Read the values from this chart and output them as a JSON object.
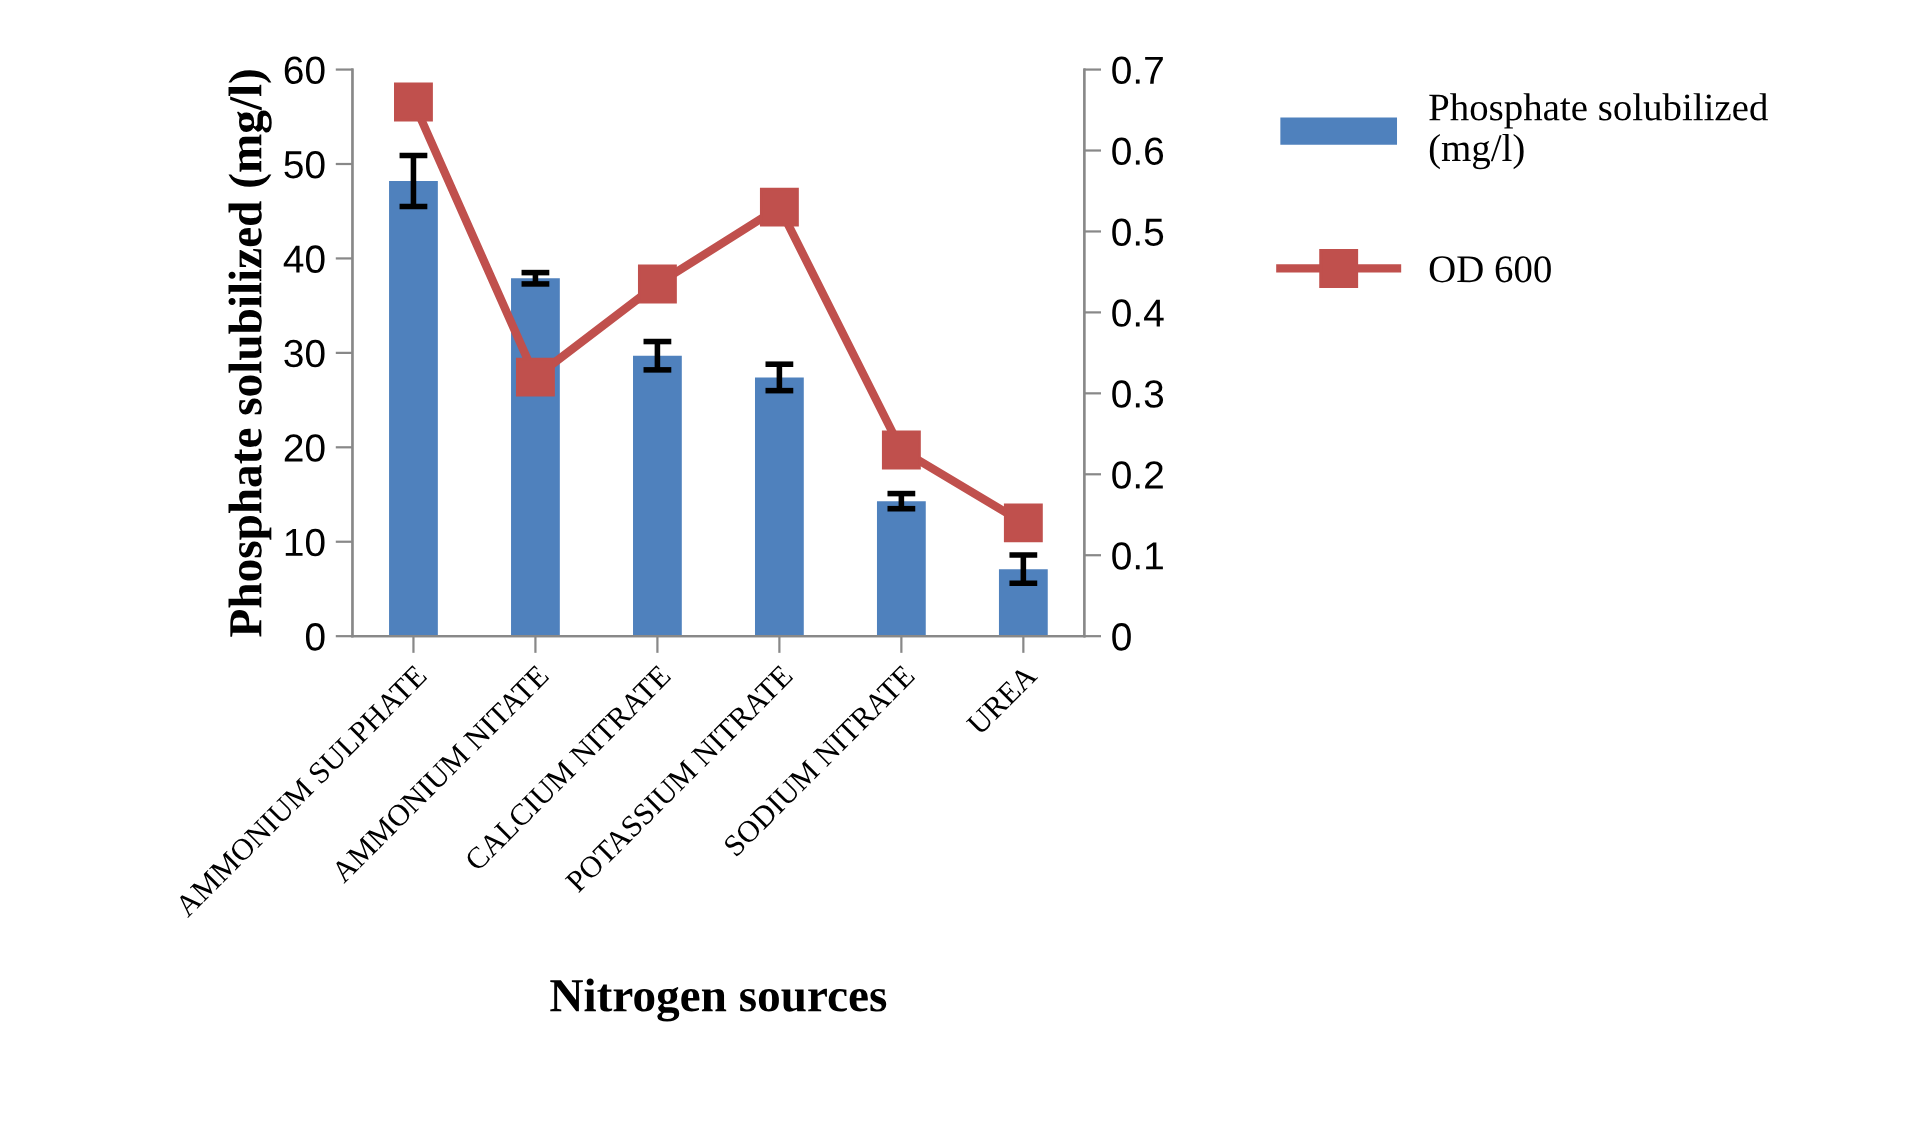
{
  "chart_data": {
    "type": "bar",
    "xlabel": "Nitrogen sources",
    "ylabel": "Phosphate solubilized (mg/l)",
    "categories": [
      "AMMONIUM SULPHATE",
      "AMMONIUM NITATE",
      "CALCIUM NITRATE",
      "POTASSIUM NITRATE",
      "SODIUM NITRATE",
      "UREA"
    ],
    "series": [
      {
        "name": "Phosphate solubilized (mg/l)",
        "color": "#4f81bd",
        "values": [
          48.2,
          37.9,
          29.7,
          27.4,
          14.3,
          7.1
        ],
        "errors": [
          2.7,
          0.6,
          1.5,
          1.4,
          0.8,
          1.5
        ]
      },
      {
        "name": "OD 600",
        "type": "line",
        "axis": "y2",
        "color": "#c0504d",
        "marker": "square",
        "values": [
          0.66,
          0.32,
          0.435,
          0.53,
          0.23,
          0.14
        ]
      }
    ],
    "ylim": [
      0,
      60
    ],
    "yticks": [
      0,
      10,
      20,
      30,
      40,
      50,
      60
    ],
    "y2lim": [
      0,
      0.7
    ],
    "y2ticks": [
      0,
      0.1,
      0.2,
      0.3,
      0.4,
      0.5,
      0.6,
      0.7
    ],
    "legend": "right",
    "grid": false
  }
}
